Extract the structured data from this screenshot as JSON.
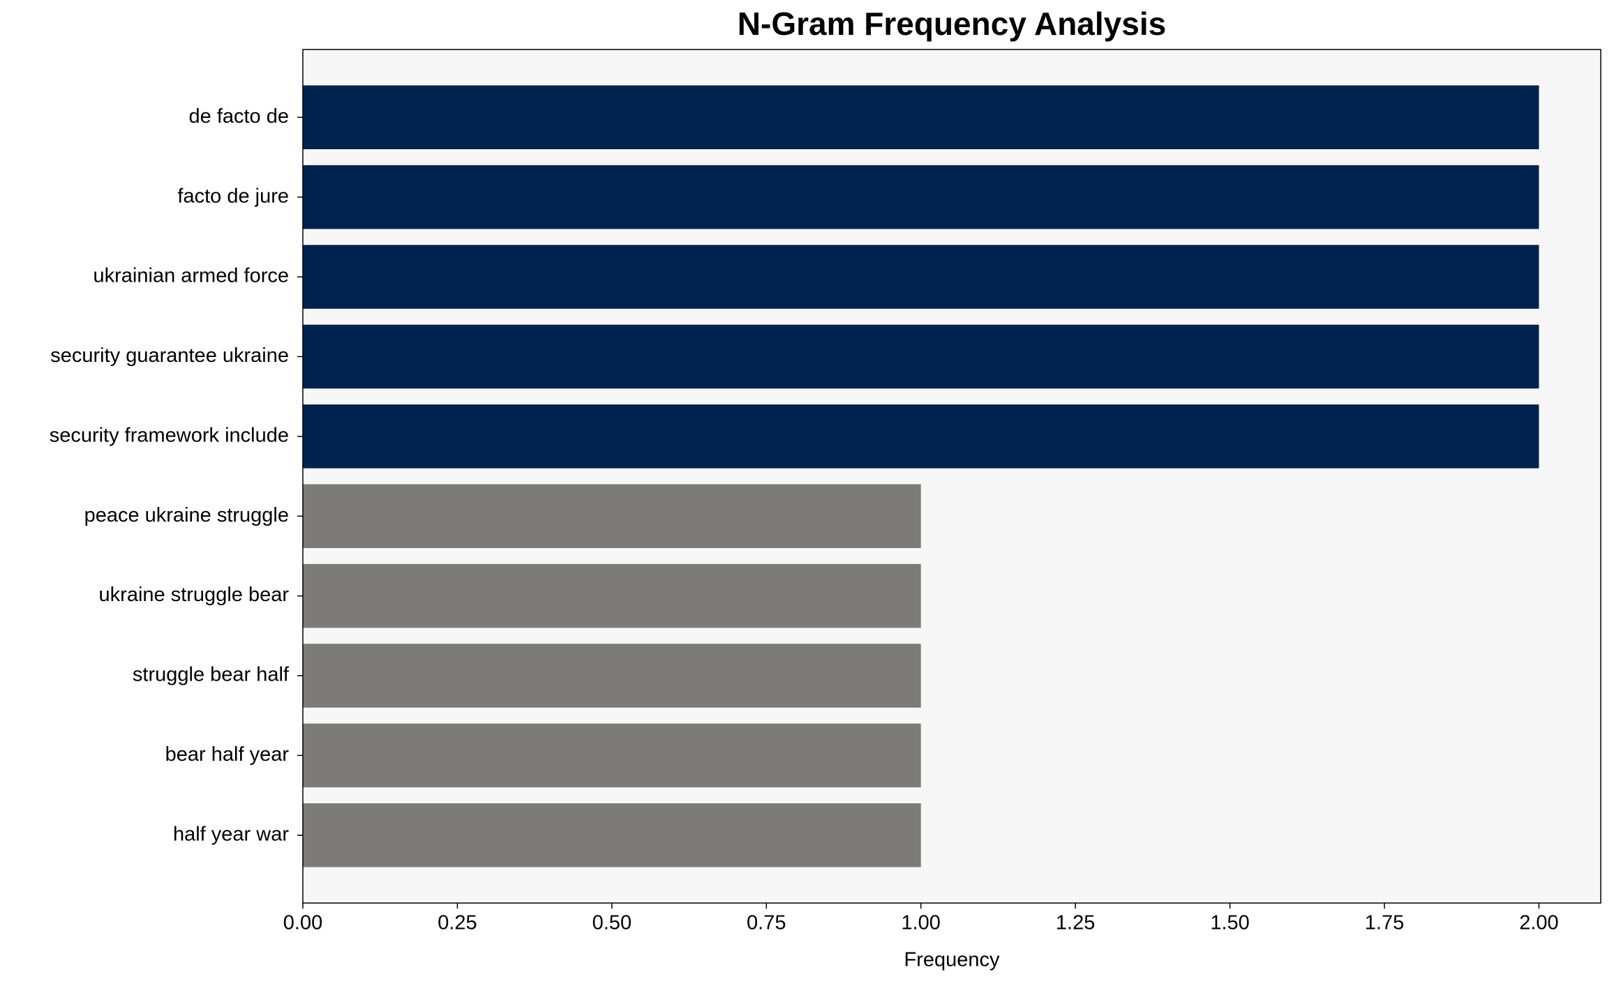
{
  "chart_data": {
    "type": "barh",
    "title": "N-Gram Frequency Analysis",
    "x_label": "Frequency",
    "categories": [
      "de facto de",
      "facto de jure",
      "ukrainian armed force",
      "security guarantee ukraine",
      "security framework include",
      "peace ukraine struggle",
      "ukraine struggle bear",
      "struggle bear half",
      "bear half year",
      "half year war"
    ],
    "values": [
      2,
      2,
      2,
      2,
      2,
      1,
      1,
      1,
      1,
      1
    ],
    "colors": [
      "#00224e",
      "#00224e",
      "#00224e",
      "#00224e",
      "#00224e",
      "#7c7b78",
      "#7c7b78",
      "#7c7b78",
      "#7c7b78",
      "#7c7b78"
    ],
    "xlim": [
      0,
      2.1
    ],
    "xticks": [
      {
        "value": 0,
        "label": "0.00"
      },
      {
        "value": 0.25,
        "label": "0.25"
      },
      {
        "value": 0.5,
        "label": "0.50"
      },
      {
        "value": 0.75,
        "label": "0.75"
      },
      {
        "value": 1,
        "label": "1.00"
      },
      {
        "value": 1.25,
        "label": "1.25"
      },
      {
        "value": 1.5,
        "label": "1.50"
      },
      {
        "value": 1.75,
        "label": "1.75"
      },
      {
        "value": 2,
        "label": "2.00"
      }
    ],
    "grid": false
  }
}
